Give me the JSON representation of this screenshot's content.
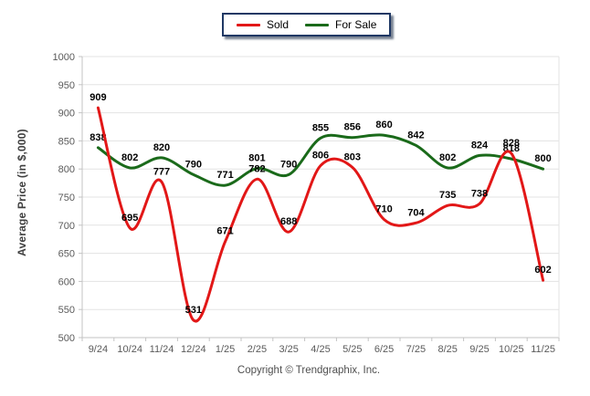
{
  "legend": {
    "items": [
      {
        "label": "Sold",
        "color": "#e21717"
      },
      {
        "label": "For Sale",
        "color": "#1a6a1a"
      }
    ],
    "border_color": "#1f3864"
  },
  "chart_data": {
    "type": "line",
    "title": "",
    "categories": [
      "9/24",
      "10/24",
      "11/24",
      "12/24",
      "1/25",
      "2/25",
      "3/25",
      "4/25",
      "5/25",
      "6/25",
      "7/25",
      "8/25",
      "9/25",
      "10/25",
      "11/25"
    ],
    "series": [
      {
        "name": "Sold",
        "color": "#e21717",
        "values": [
          909,
          695,
          777,
          531,
          671,
          782,
          688,
          806,
          803,
          710,
          704,
          735,
          738,
          828,
          602
        ]
      },
      {
        "name": "For Sale",
        "color": "#1a6a1a",
        "values": [
          838,
          802,
          820,
          790,
          771,
          801,
          790,
          855,
          856,
          860,
          842,
          802,
          824,
          818,
          800
        ]
      }
    ],
    "xlabel": "",
    "ylabel": "Average Price (in $,000)",
    "ylim": [
      500,
      1000
    ],
    "ytick_step": 50,
    "grid": true,
    "legend_position": "top-center",
    "grid_color": "#e3e3e3",
    "axis_color": "#c3c3c3",
    "tick_label_color": "#5a5a5a",
    "data_label_color": "#000000"
  },
  "footer": {
    "copyright": "Copyright © Trendgraphix, Inc."
  }
}
